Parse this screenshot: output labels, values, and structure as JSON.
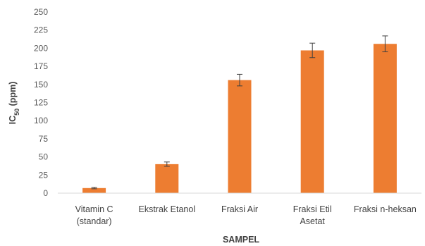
{
  "chart_data": {
    "type": "bar",
    "categories": [
      [
        "Vitamin C",
        "(standar)"
      ],
      [
        "Ekstrak Etanol"
      ],
      [
        "Fraksi Air"
      ],
      [
        "Fraksi Etil",
        "Asetat"
      ],
      [
        "Fraksi n-heksan"
      ]
    ],
    "values": [
      7,
      40,
      156,
      197,
      206
    ],
    "error": [
      1,
      3,
      8,
      10,
      11
    ],
    "ylabel_main": "IC",
    "ylabel_sub": "50",
    "ylabel_unit": " (ppm)",
    "xlabel": "SAMPEL",
    "ylim": [
      0,
      250
    ],
    "yticks": [
      0,
      25,
      50,
      75,
      100,
      125,
      150,
      175,
      200,
      225,
      250
    ],
    "grid": false,
    "colors": {
      "bar": "#ED7D31",
      "error": "#404040",
      "axis": "#D9D9D9"
    }
  }
}
